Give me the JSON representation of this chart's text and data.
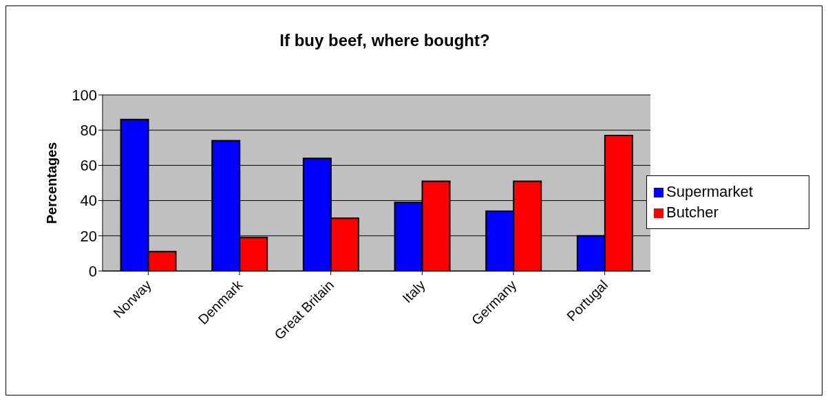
{
  "chart_data": {
    "type": "bar",
    "title": "If buy beef, where bought?",
    "ylabel": "Percentages",
    "categories": [
      "Norway",
      "Denmark",
      "Great Britain",
      "Italy",
      "Germany",
      "Portugal"
    ],
    "series": [
      {
        "name": "Supermarket",
        "color": "#0000ff",
        "values": [
          86,
          74,
          64,
          39,
          34,
          20
        ]
      },
      {
        "name": "Butcher",
        "color": "#ff0000",
        "values": [
          11,
          19,
          30,
          51,
          51,
          77
        ]
      }
    ],
    "ylim": [
      0,
      100
    ],
    "yticks": [
      0,
      20,
      40,
      60,
      80,
      100
    ],
    "grid": "y",
    "legend": "right"
  }
}
